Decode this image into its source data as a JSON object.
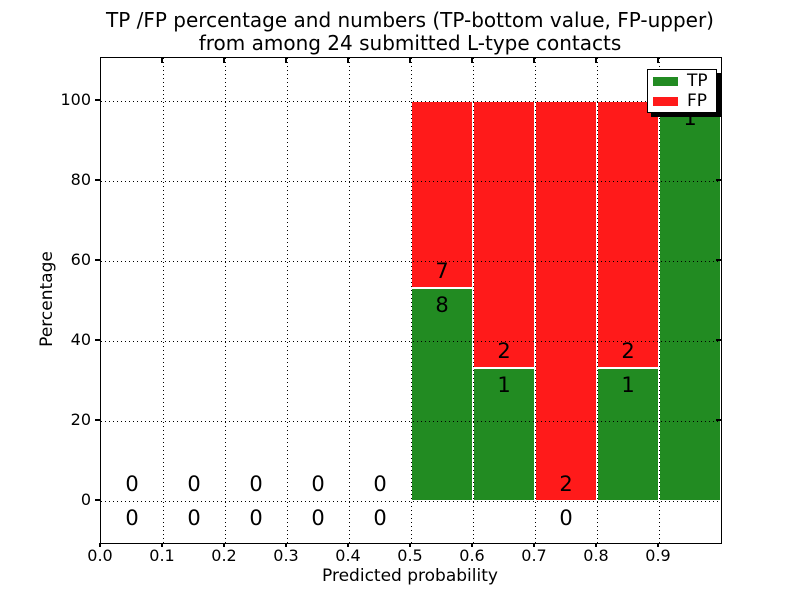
{
  "figure": {
    "title_line1": "TP /FP percentage and numbers (TP-bottom value, FP-upper)",
    "title_line2": "from among 24 submitted L-type contacts"
  },
  "legend": {
    "items": [
      {
        "label": "TP",
        "color": "#228B22"
      },
      {
        "label": "FP",
        "color": "#FF1A1A"
      }
    ]
  },
  "chart_data": {
    "type": "bar",
    "stacked": true,
    "title": "TP /FP percentage and numbers (TP-bottom value, FP-upper)\nfrom among 24 submitted L-type contacts",
    "xlabel": "Predicted probability",
    "ylabel": "Percentage",
    "xlim": [
      0.0,
      1.0
    ],
    "ylim_pct": [
      -10,
      110
    ],
    "y_ticks": [
      0,
      20,
      40,
      60,
      80,
      100
    ],
    "x_tick_labels": [
      "0.0",
      "0.1",
      "0.2",
      "0.3",
      "0.4",
      "0.5",
      "0.6",
      "0.7",
      "0.8",
      "0.9"
    ],
    "grid": "dotted",
    "legend_position": "upper-right",
    "total_submitted": 24,
    "series_names": [
      "TP",
      "FP"
    ],
    "colors": {
      "TP": "#228B22",
      "FP": "#FF1A1A"
    },
    "bins": [
      {
        "x_start": 0.0,
        "x_end": 0.1,
        "tp_count": 0,
        "fp_count": 0,
        "tp_pct": 0,
        "fp_pct": 0
      },
      {
        "x_start": 0.1,
        "x_end": 0.2,
        "tp_count": 0,
        "fp_count": 0,
        "tp_pct": 0,
        "fp_pct": 0
      },
      {
        "x_start": 0.2,
        "x_end": 0.3,
        "tp_count": 0,
        "fp_count": 0,
        "tp_pct": 0,
        "fp_pct": 0
      },
      {
        "x_start": 0.3,
        "x_end": 0.4,
        "tp_count": 0,
        "fp_count": 0,
        "tp_pct": 0,
        "fp_pct": 0
      },
      {
        "x_start": 0.4,
        "x_end": 0.5,
        "tp_count": 0,
        "fp_count": 0,
        "tp_pct": 0,
        "fp_pct": 0
      },
      {
        "x_start": 0.5,
        "x_end": 0.6,
        "tp_count": 8,
        "fp_count": 7,
        "tp_pct": 53.3,
        "fp_pct": 46.7
      },
      {
        "x_start": 0.6,
        "x_end": 0.7,
        "tp_count": 1,
        "fp_count": 2,
        "tp_pct": 33.3,
        "fp_pct": 66.7
      },
      {
        "x_start": 0.7,
        "x_end": 0.8,
        "tp_count": 0,
        "fp_count": 2,
        "tp_pct": 0,
        "fp_pct": 100
      },
      {
        "x_start": 0.8,
        "x_end": 0.9,
        "tp_count": 1,
        "fp_count": 2,
        "tp_pct": 33.3,
        "fp_pct": 66.7
      },
      {
        "x_start": 0.9,
        "x_end": 1.0,
        "tp_count": 1,
        "fp_count": 0,
        "tp_pct": 100,
        "fp_pct": 0
      }
    ]
  }
}
